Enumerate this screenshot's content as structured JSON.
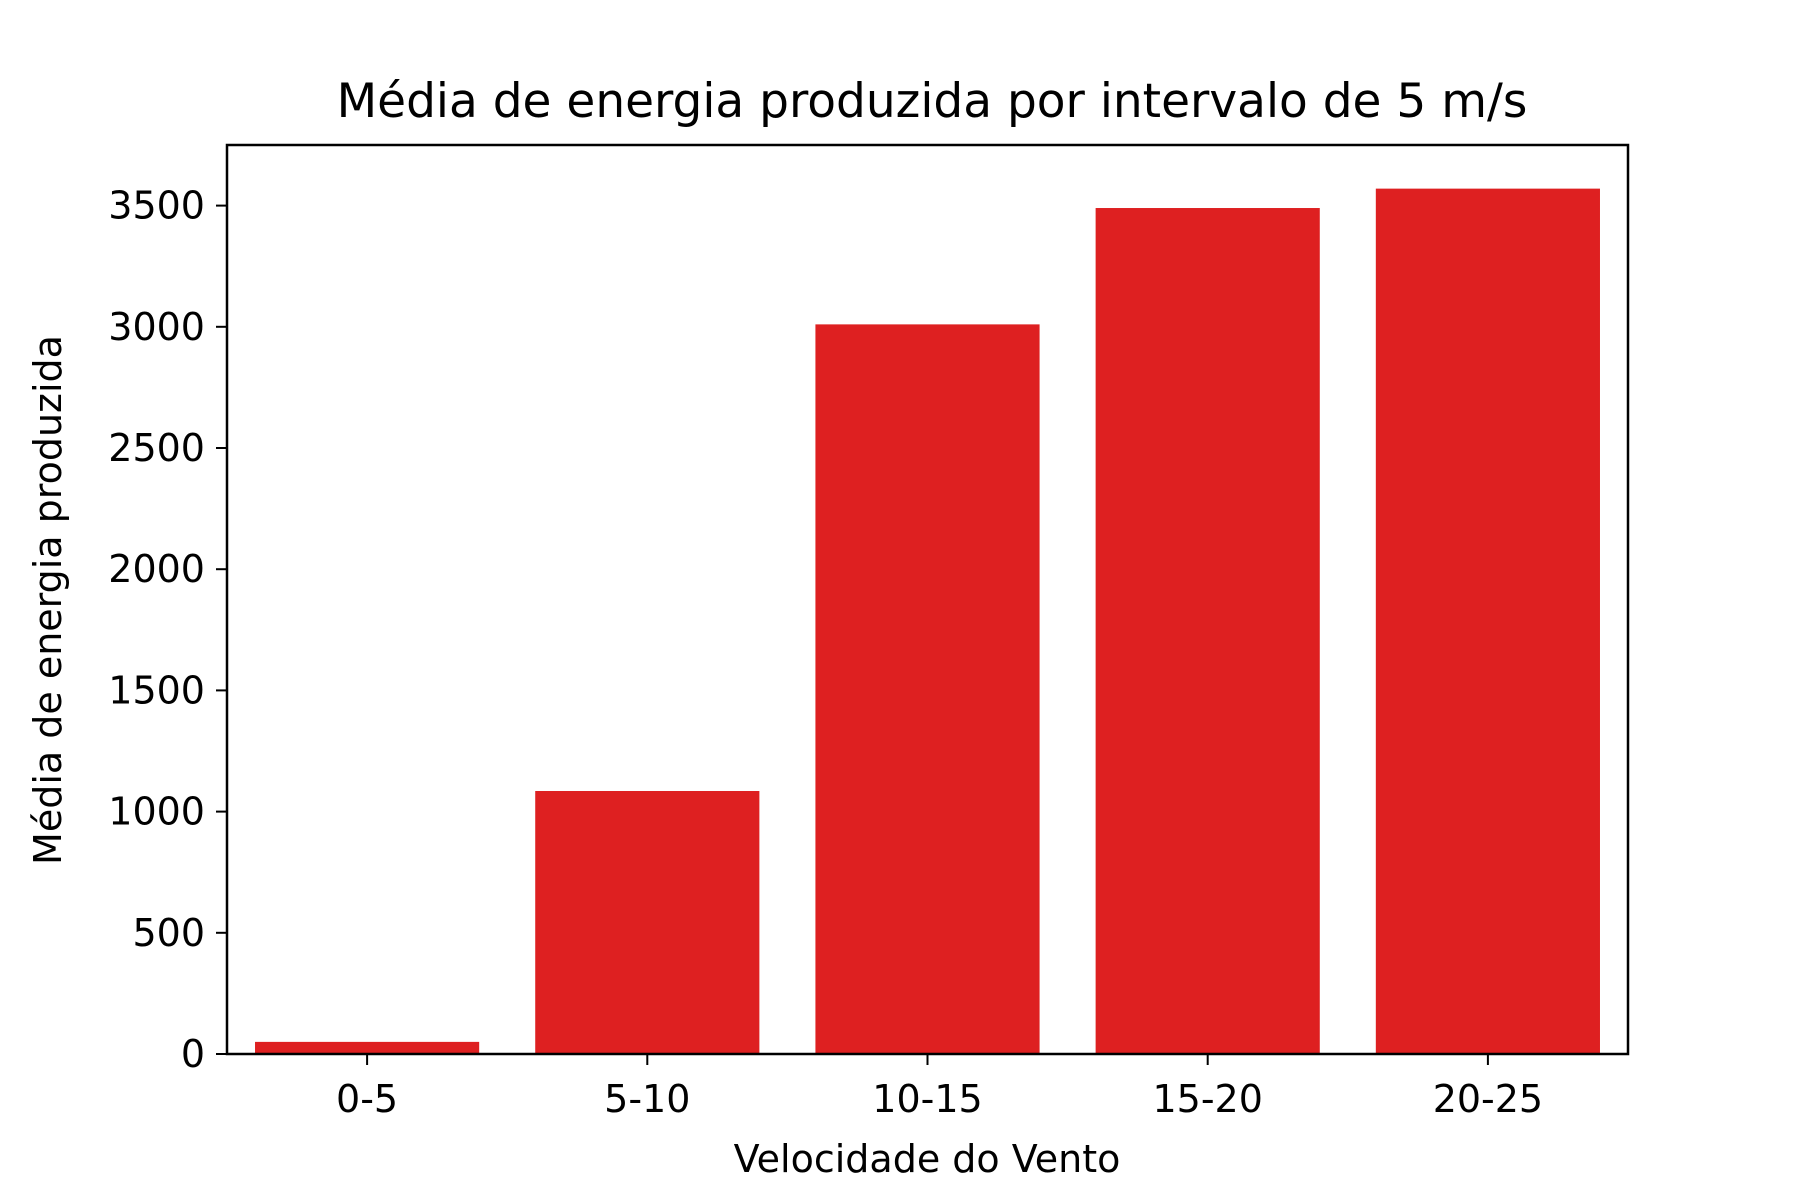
{
  "chart_data": {
    "type": "bar",
    "title": "Média de energia produzida por intervalo de 5 m/s",
    "xlabel": "Velocidade do Vento",
    "ylabel": "Média de energia produzida",
    "categories": [
      "0-5",
      "5-10",
      "10-15",
      "15-20",
      "20-25"
    ],
    "values": [
      50,
      1085,
      3010,
      3490,
      3570
    ],
    "ylim": [
      0,
      3750
    ],
    "yticks": [
      0,
      500,
      1000,
      1500,
      2000,
      2500,
      3000,
      3500
    ],
    "bar_color": "#de2021",
    "grid": false,
    "legend": "none"
  }
}
